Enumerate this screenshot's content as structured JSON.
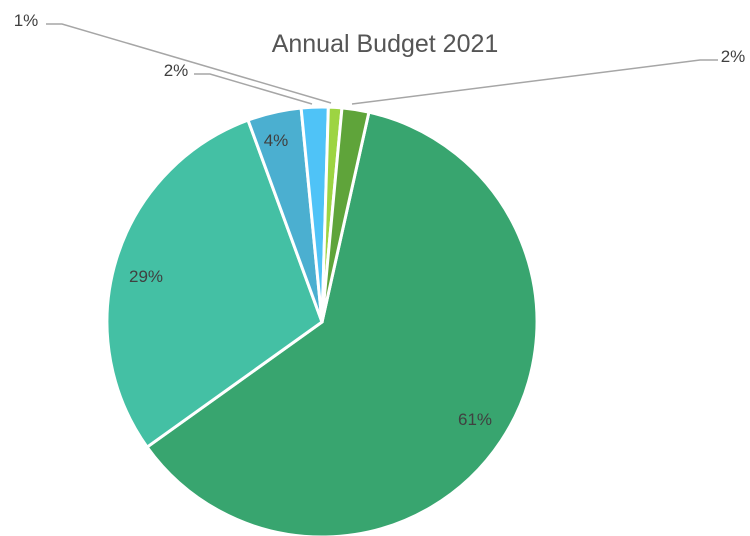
{
  "chart_data": {
    "type": "pie",
    "title": "Annual Budget 2021",
    "legend": "none",
    "slices": [
      {
        "value": 61,
        "label": "61%",
        "color": "#38A56F"
      },
      {
        "value": 29,
        "label": "29%",
        "color": "#44C0A4"
      },
      {
        "value": 4,
        "label": "4%",
        "color": "#4BAFD0"
      },
      {
        "value": 2,
        "label": "2%",
        "color": "#4FC3F7"
      },
      {
        "value": 1,
        "label": "1%",
        "color": "#9DD442"
      },
      {
        "value": 2,
        "label": "2%",
        "color": "#5FA43A"
      }
    ]
  }
}
